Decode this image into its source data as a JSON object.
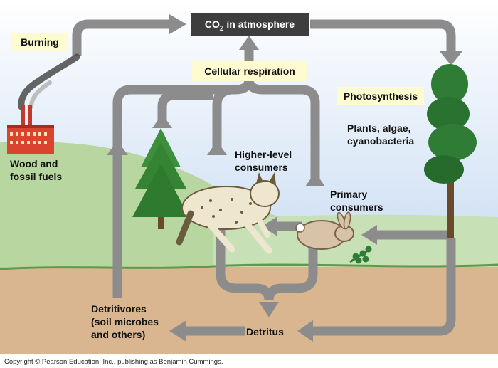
{
  "atmosphere": {
    "prefix": "CO",
    "sub": "2",
    "suffix": " in atmosphere"
  },
  "labels": {
    "burning": "Burning",
    "respiration": "Cellular respiration",
    "photosynthesis": "Photosynthesis",
    "producers": [
      "Plants, algae,",
      "cyanobacteria"
    ],
    "fuels": [
      "Wood and",
      "fossil fuels"
    ],
    "higher": [
      "Higher-level",
      "consumers"
    ],
    "primary": [
      "Primary",
      "consumers"
    ],
    "detritivores": [
      "Detritivores",
      "(soil microbes",
      "and others)"
    ],
    "detritus": "Detritus"
  },
  "copyright": "Copyright © Pearson Education, Inc., publishing as Benjamin Cummings.",
  "colors": {
    "sky": "#dfe9f6",
    "hill": "#b8d6a0",
    "ground": "#d9b68f",
    "arrow": "#8c8c8c",
    "label_box": "#fffbd0",
    "atm_box": "#3d3d3d"
  }
}
